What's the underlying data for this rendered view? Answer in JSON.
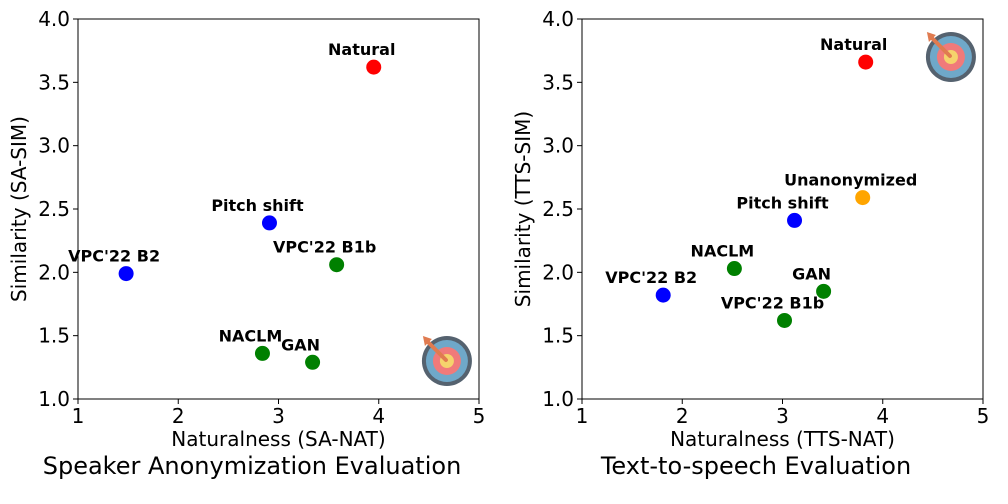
{
  "chart_data": [
    {
      "type": "scatter",
      "caption": "Speaker Anonymization Evaluation",
      "xlabel": "Naturalness (SA-NAT)",
      "ylabel": "Similarity (SA-SIM)",
      "xlim": [
        1,
        5
      ],
      "ylim": [
        1.0,
        4.0
      ],
      "xticks": [
        "1",
        "2",
        "3",
        "4",
        "5"
      ],
      "yticks": [
        "1.0",
        "1.5",
        "2.0",
        "2.5",
        "3.0",
        "3.5",
        "4.0"
      ],
      "grid": false,
      "target_marker": {
        "icon": "target-icon",
        "x": 4.68,
        "y": 1.3
      },
      "points": [
        {
          "label": "Natural",
          "x": 3.95,
          "y": 3.62,
          "color": "#ff0000"
        },
        {
          "label": "Pitch shift",
          "x": 2.91,
          "y": 2.39,
          "color": "#0000ff"
        },
        {
          "label": "VPC'22 B2",
          "x": 1.48,
          "y": 1.99,
          "color": "#0000ff"
        },
        {
          "label": "VPC'22 B1b",
          "x": 3.58,
          "y": 2.06,
          "color": "#008000"
        },
        {
          "label": "NACLM",
          "x": 2.84,
          "y": 1.36,
          "color": "#008000"
        },
        {
          "label": "GAN",
          "x": 3.34,
          "y": 1.29,
          "color": "#008000"
        }
      ]
    },
    {
      "type": "scatter",
      "caption": "Text-to-speech Evaluation",
      "xlabel": "Naturalness (TTS-NAT)",
      "ylabel": "Similarity (TTS-SIM)",
      "xlim": [
        1,
        5
      ],
      "ylim": [
        1.0,
        4.0
      ],
      "xticks": [
        "1",
        "2",
        "3",
        "4",
        "5"
      ],
      "yticks": [
        "1.0",
        "1.5",
        "2.0",
        "2.5",
        "3.0",
        "3.5",
        "4.0"
      ],
      "grid": false,
      "target_marker": {
        "icon": "target-icon",
        "x": 4.68,
        "y": 3.7
      },
      "points": [
        {
          "label": "Natural",
          "x": 3.83,
          "y": 3.66,
          "color": "#ff0000"
        },
        {
          "label": "Unanonymized",
          "x": 3.8,
          "y": 2.59,
          "color": "#ffa500"
        },
        {
          "label": "Pitch shift",
          "x": 3.12,
          "y": 2.41,
          "color": "#0000ff"
        },
        {
          "label": "VPC'22 B2",
          "x": 1.81,
          "y": 1.82,
          "color": "#0000ff"
        },
        {
          "label": "NACLM",
          "x": 2.52,
          "y": 2.03,
          "color": "#008000"
        },
        {
          "label": "GAN",
          "x": 3.41,
          "y": 1.85,
          "color": "#008000"
        },
        {
          "label": "VPC'22 B1b",
          "x": 3.02,
          "y": 1.62,
          "color": "#008000"
        }
      ]
    }
  ]
}
